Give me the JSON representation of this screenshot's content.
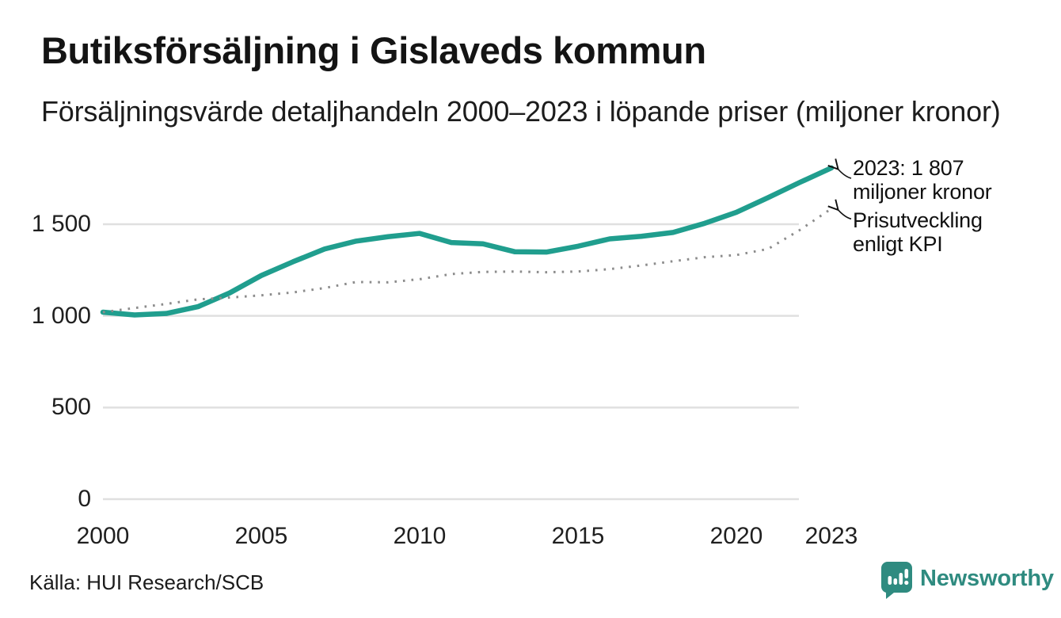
{
  "header": {
    "title": "Butiksförsäljning i Gislaveds kommun",
    "subtitle": "Försäljningsvärde detaljhandeln 2000–2023 i löpande priser (miljoner kronor)"
  },
  "chart_data": {
    "type": "line",
    "title": "Butiksförsäljning i Gislaveds kommun",
    "subtitle": "Försäljningsvärde detaljhandeln 2000–2023 i löpande priser (miljoner kronor)",
    "x": [
      2000,
      2001,
      2002,
      2003,
      2004,
      2005,
      2006,
      2007,
      2008,
      2009,
      2010,
      2011,
      2012,
      2013,
      2014,
      2015,
      2016,
      2017,
      2018,
      2019,
      2020,
      2021,
      2022,
      2023
    ],
    "series": [
      {
        "name": "Försäljningsvärde i löpande priser",
        "color": "#209e8e",
        "line_style": "solid",
        "values": [
          1020,
          1005,
          1013,
          1050,
          1125,
          1220,
          1295,
          1365,
          1408,
          1432,
          1450,
          1400,
          1393,
          1350,
          1348,
          1380,
          1420,
          1434,
          1455,
          1505,
          1565,
          1645,
          1728,
          1807
        ]
      },
      {
        "name": "Prisutveckling enligt KPI",
        "color": "#8c8c8c",
        "line_style": "dotted",
        "values": [
          1020,
          1043,
          1065,
          1090,
          1100,
          1112,
          1128,
          1152,
          1185,
          1183,
          1200,
          1228,
          1240,
          1242,
          1238,
          1242,
          1255,
          1275,
          1298,
          1320,
          1332,
          1365,
          1468,
          1585
        ]
      }
    ],
    "ylim": [
      0,
      1810
    ],
    "xlabel": "",
    "ylabel": "",
    "grid": true,
    "legend_position": "annotations-right",
    "yticks": [
      {
        "value": 1500,
        "label": "1 500"
      },
      {
        "value": 1000,
        "label": "1 000"
      },
      {
        "value": 500,
        "label": "500"
      },
      {
        "value": 0,
        "label": "0"
      }
    ],
    "xticks": [
      {
        "value": 2000,
        "label": "2000"
      },
      {
        "value": 2005,
        "label": "2005"
      },
      {
        "value": 2010,
        "label": "2010"
      },
      {
        "value": 2015,
        "label": "2015"
      },
      {
        "value": 2020,
        "label": "2020"
      },
      {
        "value": 2023,
        "label": "2023"
      }
    ],
    "annotations": [
      {
        "line1": "2023: 1 807",
        "line2": "miljoner kronor",
        "series": 0
      },
      {
        "line1": "Prisutveckling",
        "line2": "enligt KPI",
        "series": 1
      }
    ]
  },
  "footer": {
    "source": "Källa: HUI Research/SCB",
    "brand": "Newsworthy"
  },
  "colors": {
    "accent": "#209e8e",
    "kpi_line": "#8c8c8c",
    "grid": "#e0e0e0",
    "brand": "#2f8b80",
    "text": "#171717"
  }
}
